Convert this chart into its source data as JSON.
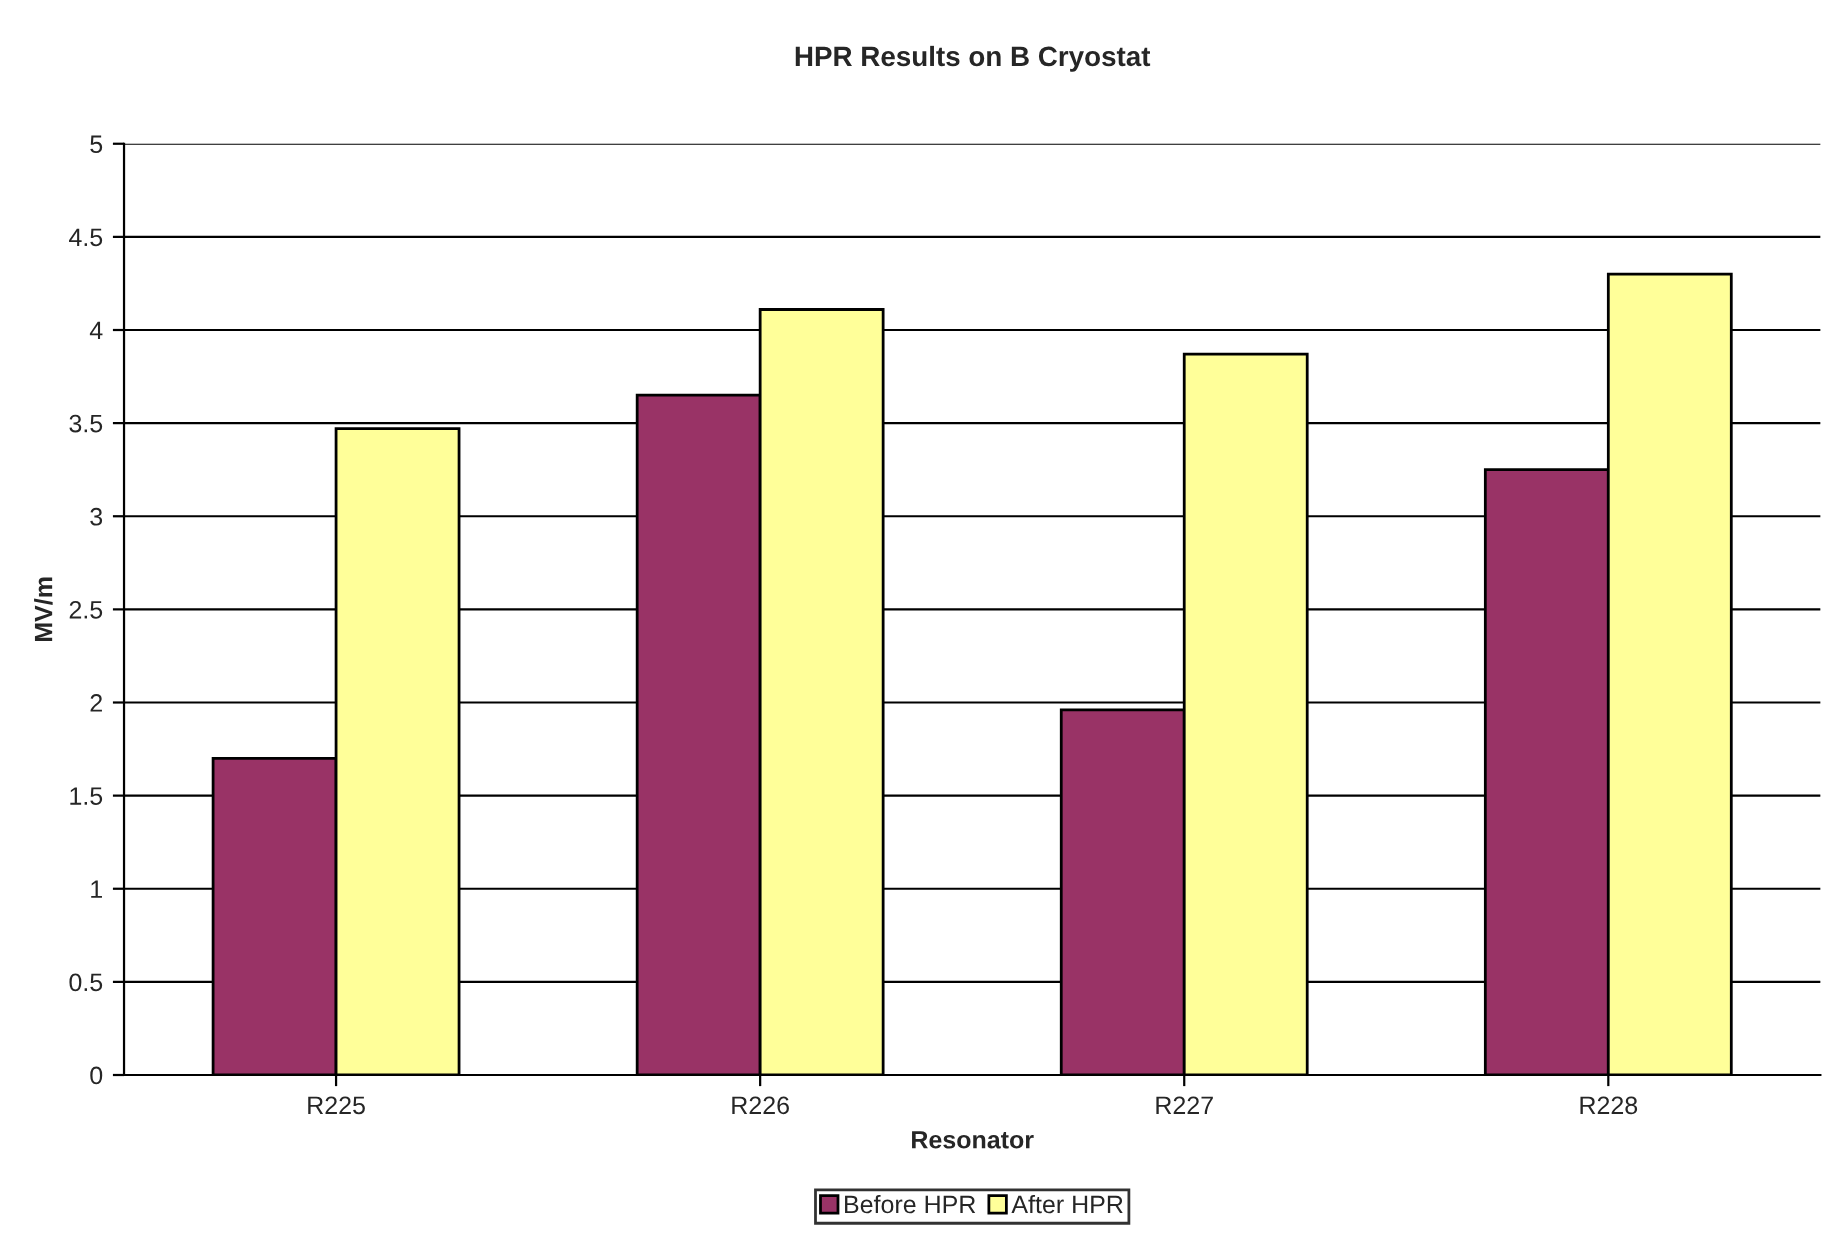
{
  "chart_data": {
    "type": "bar",
    "title": "HPR Results on B Cryostat",
    "xlabel": "Resonator",
    "ylabel": "MV/m",
    "categories": [
      "R225",
      "R226",
      "R227",
      "R228"
    ],
    "series": [
      {
        "name": "Before HPR",
        "color": "#993366",
        "values": [
          1.7,
          3.65,
          1.96,
          3.25
        ]
      },
      {
        "name": "After HPR",
        "color": "#ffff99",
        "values": [
          3.47,
          4.11,
          3.87,
          4.3
        ]
      }
    ],
    "ylim": [
      0,
      5
    ],
    "yticks": [
      0,
      0.5,
      1,
      1.5,
      2,
      2.5,
      3,
      3.5,
      4,
      4.5,
      5
    ],
    "grid": "y",
    "legend": "bottom"
  }
}
